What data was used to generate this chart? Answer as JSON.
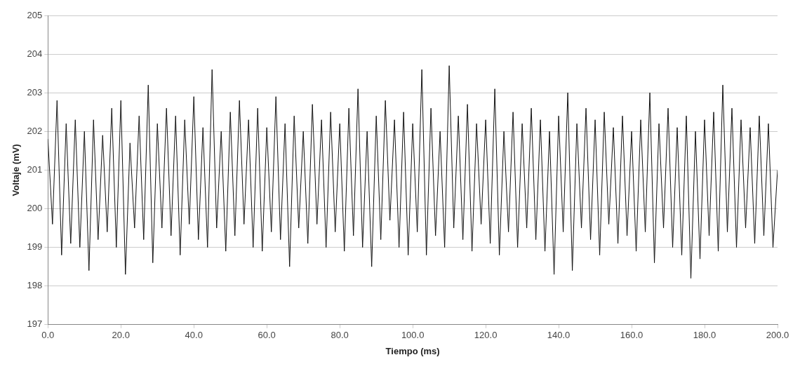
{
  "chart_data": {
    "type": "line",
    "xlabel": "Tiempo (ms)",
    "ylabel": "Voltaje (mV)",
    "x": [
      0,
      1.25,
      2.5,
      3.75,
      5,
      6.25,
      7.5,
      8.75,
      10,
      11.25,
      12.5,
      13.75,
      15,
      16.25,
      17.5,
      18.75,
      20,
      21.25,
      22.5,
      23.75,
      25,
      26.25,
      27.5,
      28.75,
      30,
      31.25,
      32.5,
      33.75,
      35,
      36.25,
      37.5,
      38.75,
      40,
      41.25,
      42.5,
      43.75,
      45,
      46.25,
      47.5,
      48.75,
      50,
      51.25,
      52.5,
      53.75,
      55,
      56.25,
      57.5,
      58.75,
      60,
      61.25,
      62.5,
      63.75,
      65,
      66.25,
      67.5,
      68.75,
      70,
      71.25,
      72.5,
      73.75,
      75,
      76.25,
      77.5,
      78.75,
      80,
      81.25,
      82.5,
      83.75,
      85,
      86.25,
      87.5,
      88.75,
      90,
      91.25,
      92.5,
      93.75,
      95,
      96.25,
      97.5,
      98.75,
      100,
      101.25,
      102.5,
      103.75,
      105,
      106.25,
      107.5,
      108.75,
      110,
      111.25,
      112.5,
      113.75,
      115,
      116.25,
      117.5,
      118.75,
      120,
      121.25,
      122.5,
      123.75,
      125,
      126.25,
      127.5,
      128.75,
      130,
      131.25,
      132.5,
      133.75,
      135,
      136.25,
      137.5,
      138.75,
      140,
      141.25,
      142.5,
      143.75,
      145,
      146.25,
      147.5,
      148.75,
      150,
      151.25,
      152.5,
      153.75,
      155,
      156.25,
      157.5,
      158.75,
      160,
      161.25,
      162.5,
      163.75,
      165,
      166.25,
      167.5,
      168.75,
      170,
      171.25,
      172.5,
      173.75,
      175,
      176.25,
      177.5,
      178.75,
      180,
      181.25,
      182.5,
      183.75,
      185,
      186.25,
      187.5,
      188.75,
      190,
      191.25,
      192.5,
      193.75,
      195,
      196.25,
      197.5,
      198.75,
      200
    ],
    "series": [
      {
        "color": "#111111",
        "values": [
          201.8,
          199.6,
          202.8,
          198.8,
          202.2,
          199.1,
          202.3,
          199.0,
          202.0,
          198.4,
          202.3,
          199.2,
          201.9,
          199.4,
          202.6,
          199.0,
          202.8,
          198.3,
          201.7,
          199.5,
          202.4,
          199.2,
          203.2,
          198.6,
          202.2,
          199.5,
          202.6,
          199.3,
          202.4,
          198.8,
          202.3,
          199.6,
          202.9,
          199.2,
          202.1,
          199.0,
          203.6,
          199.5,
          202.0,
          198.9,
          202.5,
          199.3,
          202.8,
          199.6,
          202.3,
          199.0,
          202.6,
          198.9,
          202.1,
          199.4,
          202.9,
          199.2,
          202.2,
          198.5,
          202.4,
          199.5,
          202.0,
          199.1,
          202.7,
          199.6,
          202.3,
          199.0,
          202.5,
          199.4,
          202.2,
          198.9,
          202.6,
          199.3,
          203.1,
          199.0,
          202.0,
          198.5,
          202.4,
          199.2,
          202.8,
          199.7,
          202.3,
          199.0,
          202.5,
          198.8,
          202.2,
          199.4,
          203.6,
          198.8,
          202.6,
          199.3,
          202.0,
          199.0,
          203.7,
          199.5,
          202.4,
          199.2,
          202.7,
          198.9,
          202.2,
          199.6,
          202.3,
          199.1,
          203.1,
          198.8,
          202.0,
          199.4,
          202.5,
          199.0,
          202.2,
          199.5,
          202.6,
          199.2,
          202.3,
          198.9,
          202.0,
          198.3,
          202.4,
          199.4,
          203.0,
          198.4,
          202.2,
          199.5,
          202.6,
          199.2,
          202.3,
          198.8,
          202.5,
          199.6,
          202.1,
          199.1,
          202.4,
          199.3,
          202.0,
          198.9,
          202.3,
          199.4,
          203.0,
          198.6,
          202.2,
          199.5,
          202.6,
          199.0,
          202.1,
          198.8,
          202.4,
          198.2,
          202.0,
          198.7,
          202.3,
          199.3,
          202.5,
          198.9,
          203.2,
          199.4,
          202.6,
          199.0,
          202.3,
          199.5,
          202.1,
          199.1,
          202.4,
          199.3,
          202.2,
          199.0,
          201.0
        ]
      }
    ],
    "xlim": [
      0,
      200
    ],
    "xticks": [
      {
        "value": 0,
        "label": "0.0"
      },
      {
        "value": 20,
        "label": "20.0"
      },
      {
        "value": 40,
        "label": "40.0"
      },
      {
        "value": 60,
        "label": "60.0"
      },
      {
        "value": 80,
        "label": "80.0"
      },
      {
        "value": 100,
        "label": "100.0"
      },
      {
        "value": 120,
        "label": "120.0"
      },
      {
        "value": 140,
        "label": "140.0"
      },
      {
        "value": 160,
        "label": "160.0"
      },
      {
        "value": 180,
        "label": "180.0"
      },
      {
        "value": 200,
        "label": "200.0"
      }
    ],
    "ylim": [
      197,
      205
    ],
    "yticks": [
      197,
      198,
      199,
      200,
      201,
      202,
      203,
      204,
      205
    ],
    "grid": "y",
    "legend": false,
    "marker": "none",
    "line_style": "solid"
  }
}
